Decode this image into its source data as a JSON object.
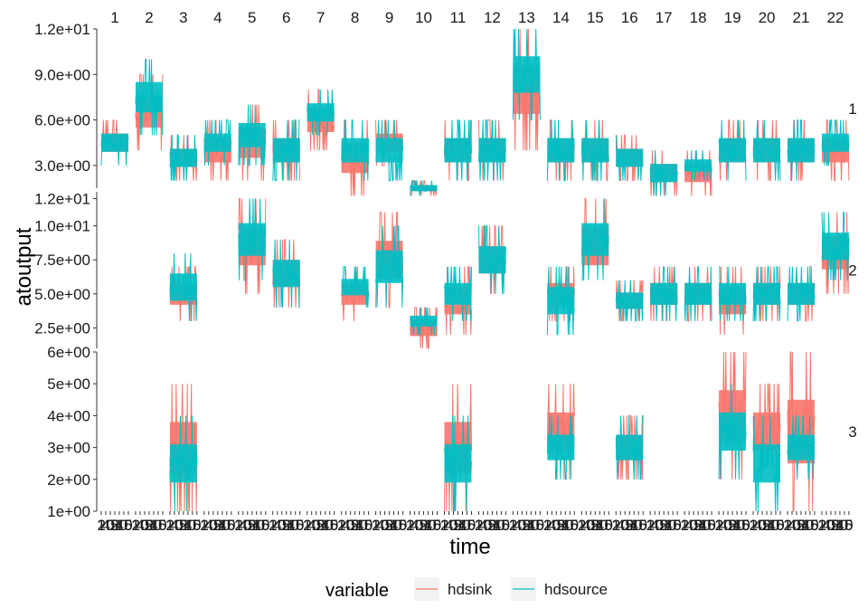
{
  "chart_data": {
    "type": "line",
    "xlabel": "time",
    "ylabel": "atoutput",
    "x_tick_labels": [
      "1",
      "20",
      "45",
      "01",
      "20",
      "45",
      "0"
    ],
    "facet_columns": [
      "1",
      "2",
      "3",
      "4",
      "5",
      "6",
      "7",
      "8",
      "9",
      "10",
      "11",
      "12",
      "13",
      "14",
      "15",
      "16",
      "17",
      "18",
      "19",
      "20",
      "21",
      "22"
    ],
    "facet_rows": [
      {
        "label": "1",
        "ylim": [
          1.5,
          12
        ],
        "y_ticks": [
          3,
          6,
          9,
          12
        ],
        "y_tick_labels": [
          "3.0e+00",
          "6.0e+00",
          "9.0e+00",
          "1.2e+01"
        ]
      },
      {
        "label": "2",
        "ylim": [
          1.0,
          12.5
        ],
        "y_ticks": [
          2.5,
          5,
          7.5,
          10,
          12
        ],
        "y_tick_labels": [
          "2.5e+00",
          "5.0e+00",
          "7.5e+00",
          "1.0e+01",
          "1.2e+01"
        ]
      },
      {
        "label": "3",
        "ylim": [
          1,
          6
        ],
        "y_ticks": [
          1,
          2,
          3,
          4,
          5,
          6
        ],
        "y_tick_labels": [
          "1e+00",
          "2e+00",
          "3e+00",
          "4e+00",
          "5e+00",
          "6e+00"
        ]
      }
    ],
    "series": [
      {
        "name": "hdsink",
        "color": "#F8766D"
      },
      {
        "name": "hdsource",
        "color": "#00BFC4"
      }
    ],
    "legend": {
      "title": "variable",
      "position": "bottom",
      "entries": [
        "hdsink",
        "hdsource"
      ]
    },
    "panels": {
      "1": [
        {
          "sink": [
            3,
            6
          ],
          "source": [
            3,
            6
          ]
        },
        {
          "sink": [
            4,
            9
          ],
          "source": [
            5,
            10
          ]
        },
        {
          "sink": [
            2,
            5
          ],
          "source": [
            2,
            5
          ]
        },
        {
          "sink": [
            2,
            6
          ],
          "source": [
            3,
            6
          ]
        },
        {
          "sink": [
            2,
            7
          ],
          "source": [
            3,
            7
          ]
        },
        {
          "sink": [
            2,
            6
          ],
          "source": [
            2,
            6
          ]
        },
        {
          "sink": [
            4,
            8
          ],
          "source": [
            5,
            8
          ]
        },
        {
          "sink": [
            1,
            6
          ],
          "source": [
            2,
            6
          ]
        },
        {
          "sink": [
            3,
            6
          ],
          "source": [
            2,
            6
          ]
        },
        {
          "sink": [
            1,
            2
          ],
          "source": [
            1,
            2
          ]
        },
        {
          "sink": [
            2,
            6
          ],
          "source": [
            2,
            6
          ]
        },
        {
          "sink": [
            2,
            6
          ],
          "source": [
            2,
            6
          ]
        },
        {
          "sink": [
            4,
            12
          ],
          "source": [
            6,
            12
          ]
        },
        {
          "sink": [
            2,
            6
          ],
          "source": [
            2,
            6
          ]
        },
        {
          "sink": [
            2,
            6
          ],
          "source": [
            2,
            6
          ]
        },
        {
          "sink": [
            2,
            5
          ],
          "source": [
            2,
            5
          ]
        },
        {
          "sink": [
            1,
            4
          ],
          "source": [
            1,
            4
          ]
        },
        {
          "sink": [
            1,
            4
          ],
          "source": [
            2,
            4
          ]
        },
        {
          "sink": [
            2,
            6
          ],
          "source": [
            2,
            6
          ]
        },
        {
          "sink": [
            2,
            6
          ],
          "source": [
            2,
            6
          ]
        },
        {
          "sink": [
            2,
            6
          ],
          "source": [
            2,
            6
          ]
        },
        {
          "sink": [
            2,
            6
          ],
          "source": [
            3,
            6
          ]
        }
      ],
      "2": [
        null,
        null,
        {
          "sink": [
            3,
            7
          ],
          "source": [
            3,
            8
          ]
        },
        null,
        {
          "sink": [
            5,
            12
          ],
          "source": [
            6,
            12
          ]
        },
        {
          "sink": [
            4,
            9
          ],
          "source": [
            4,
            9
          ]
        },
        null,
        {
          "sink": [
            3,
            7
          ],
          "source": [
            4,
            7
          ]
        },
        {
          "sink": [
            4,
            11
          ],
          "source": [
            4,
            10
          ]
        },
        {
          "sink": [
            1,
            4
          ],
          "source": [
            2,
            4
          ]
        },
        {
          "sink": [
            2,
            7
          ],
          "source": [
            3,
            7
          ]
        },
        {
          "sink": [
            5,
            10
          ],
          "source": [
            5,
            10
          ]
        },
        null,
        {
          "sink": [
            3,
            7
          ],
          "source": [
            2,
            7
          ]
        },
        {
          "sink": [
            5,
            12
          ],
          "source": [
            6,
            12
          ]
        },
        {
          "sink": [
            3,
            6
          ],
          "source": [
            3,
            6
          ]
        },
        {
          "sink": [
            3,
            7
          ],
          "source": [
            3,
            7
          ]
        },
        {
          "sink": [
            3,
            7
          ],
          "source": [
            3,
            7
          ]
        },
        {
          "sink": [
            2,
            7
          ],
          "source": [
            3,
            7
          ]
        },
        {
          "sink": [
            3,
            7
          ],
          "source": [
            3,
            7
          ]
        },
        {
          "sink": [
            3,
            7
          ],
          "source": [
            3,
            7
          ]
        },
        {
          "sink": [
            5,
            11
          ],
          "source": [
            6,
            11
          ]
        }
      ],
      "3": [
        null,
        null,
        {
          "sink": [
            1,
            5
          ],
          "source": [
            1,
            4
          ]
        },
        null,
        null,
        null,
        null,
        null,
        null,
        null,
        {
          "sink": [
            1,
            5
          ],
          "source": [
            1,
            4
          ]
        },
        null,
        null,
        {
          "sink": [
            2,
            5
          ],
          "source": [
            2,
            4
          ]
        },
        null,
        {
          "sink": [
            2,
            4
          ],
          "source": [
            2,
            4
          ]
        },
        null,
        null,
        {
          "sink": [
            2,
            6
          ],
          "source": [
            2,
            5
          ]
        },
        {
          "sink": [
            2,
            5
          ],
          "source": [
            1,
            4
          ]
        },
        {
          "sink": [
            1,
            6
          ],
          "source": [
            2,
            4
          ]
        },
        null
      ]
    }
  }
}
